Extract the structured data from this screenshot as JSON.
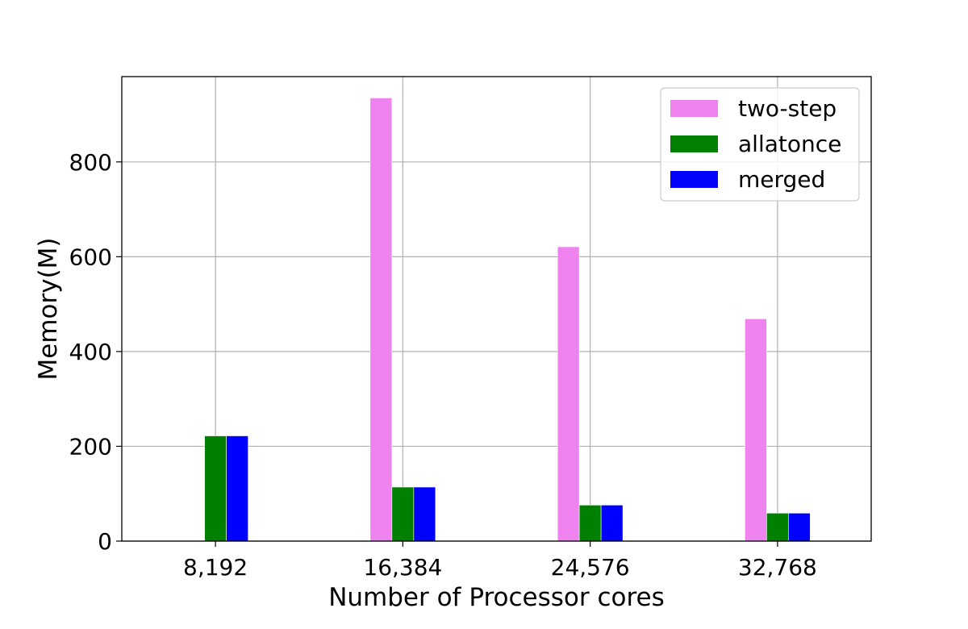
{
  "chart_data": {
    "type": "bar",
    "title": "",
    "xlabel": "Number of Processor cores",
    "ylabel": "Memory(M)",
    "categories": [
      "8,192",
      "16,384",
      "24,576",
      "32,768"
    ],
    "series": [
      {
        "name": "two-step",
        "color": "#ee82ee",
        "values": [
          0,
          935,
          621,
          469
        ]
      },
      {
        "name": "allatonce",
        "color": "#008000",
        "values": [
          222,
          114,
          76,
          59
        ]
      },
      {
        "name": "merged",
        "color": "#0000ff",
        "values": [
          222,
          114,
          76,
          59
        ]
      }
    ],
    "ylim": [
      0,
      980
    ],
    "yticks": [
      0,
      200,
      400,
      600,
      800
    ],
    "grid": true,
    "legend_position": "top-right"
  }
}
